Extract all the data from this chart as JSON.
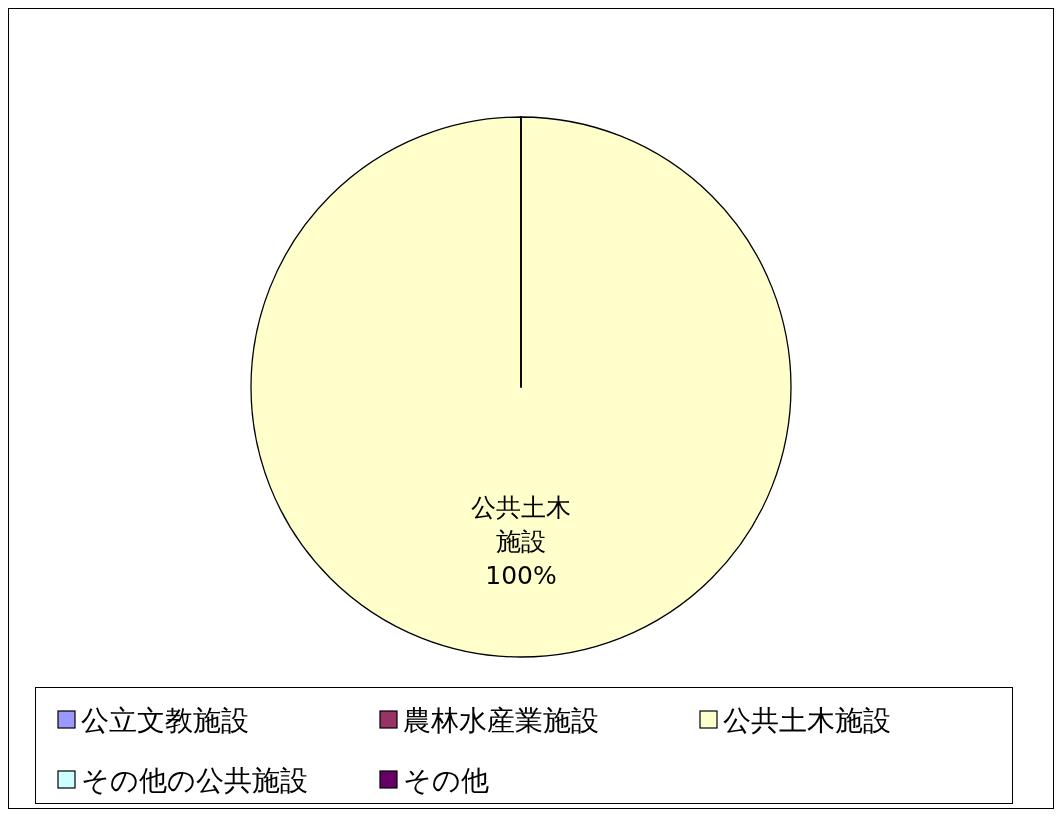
{
  "chart_data": {
    "type": "pie",
    "categories": [
      "公立文教施設",
      "農林水産業施設",
      "公共土木施設",
      "その他の公共施設",
      "その他"
    ],
    "values": [
      0,
      0,
      100,
      0,
      0
    ],
    "colors": [
      "#9999ff",
      "#993366",
      "#ffffcc",
      "#ccffff",
      "#660066"
    ],
    "value_labels": [
      null,
      null,
      "公共土木施設 100%",
      null,
      null
    ],
    "legend": "bottom"
  }
}
